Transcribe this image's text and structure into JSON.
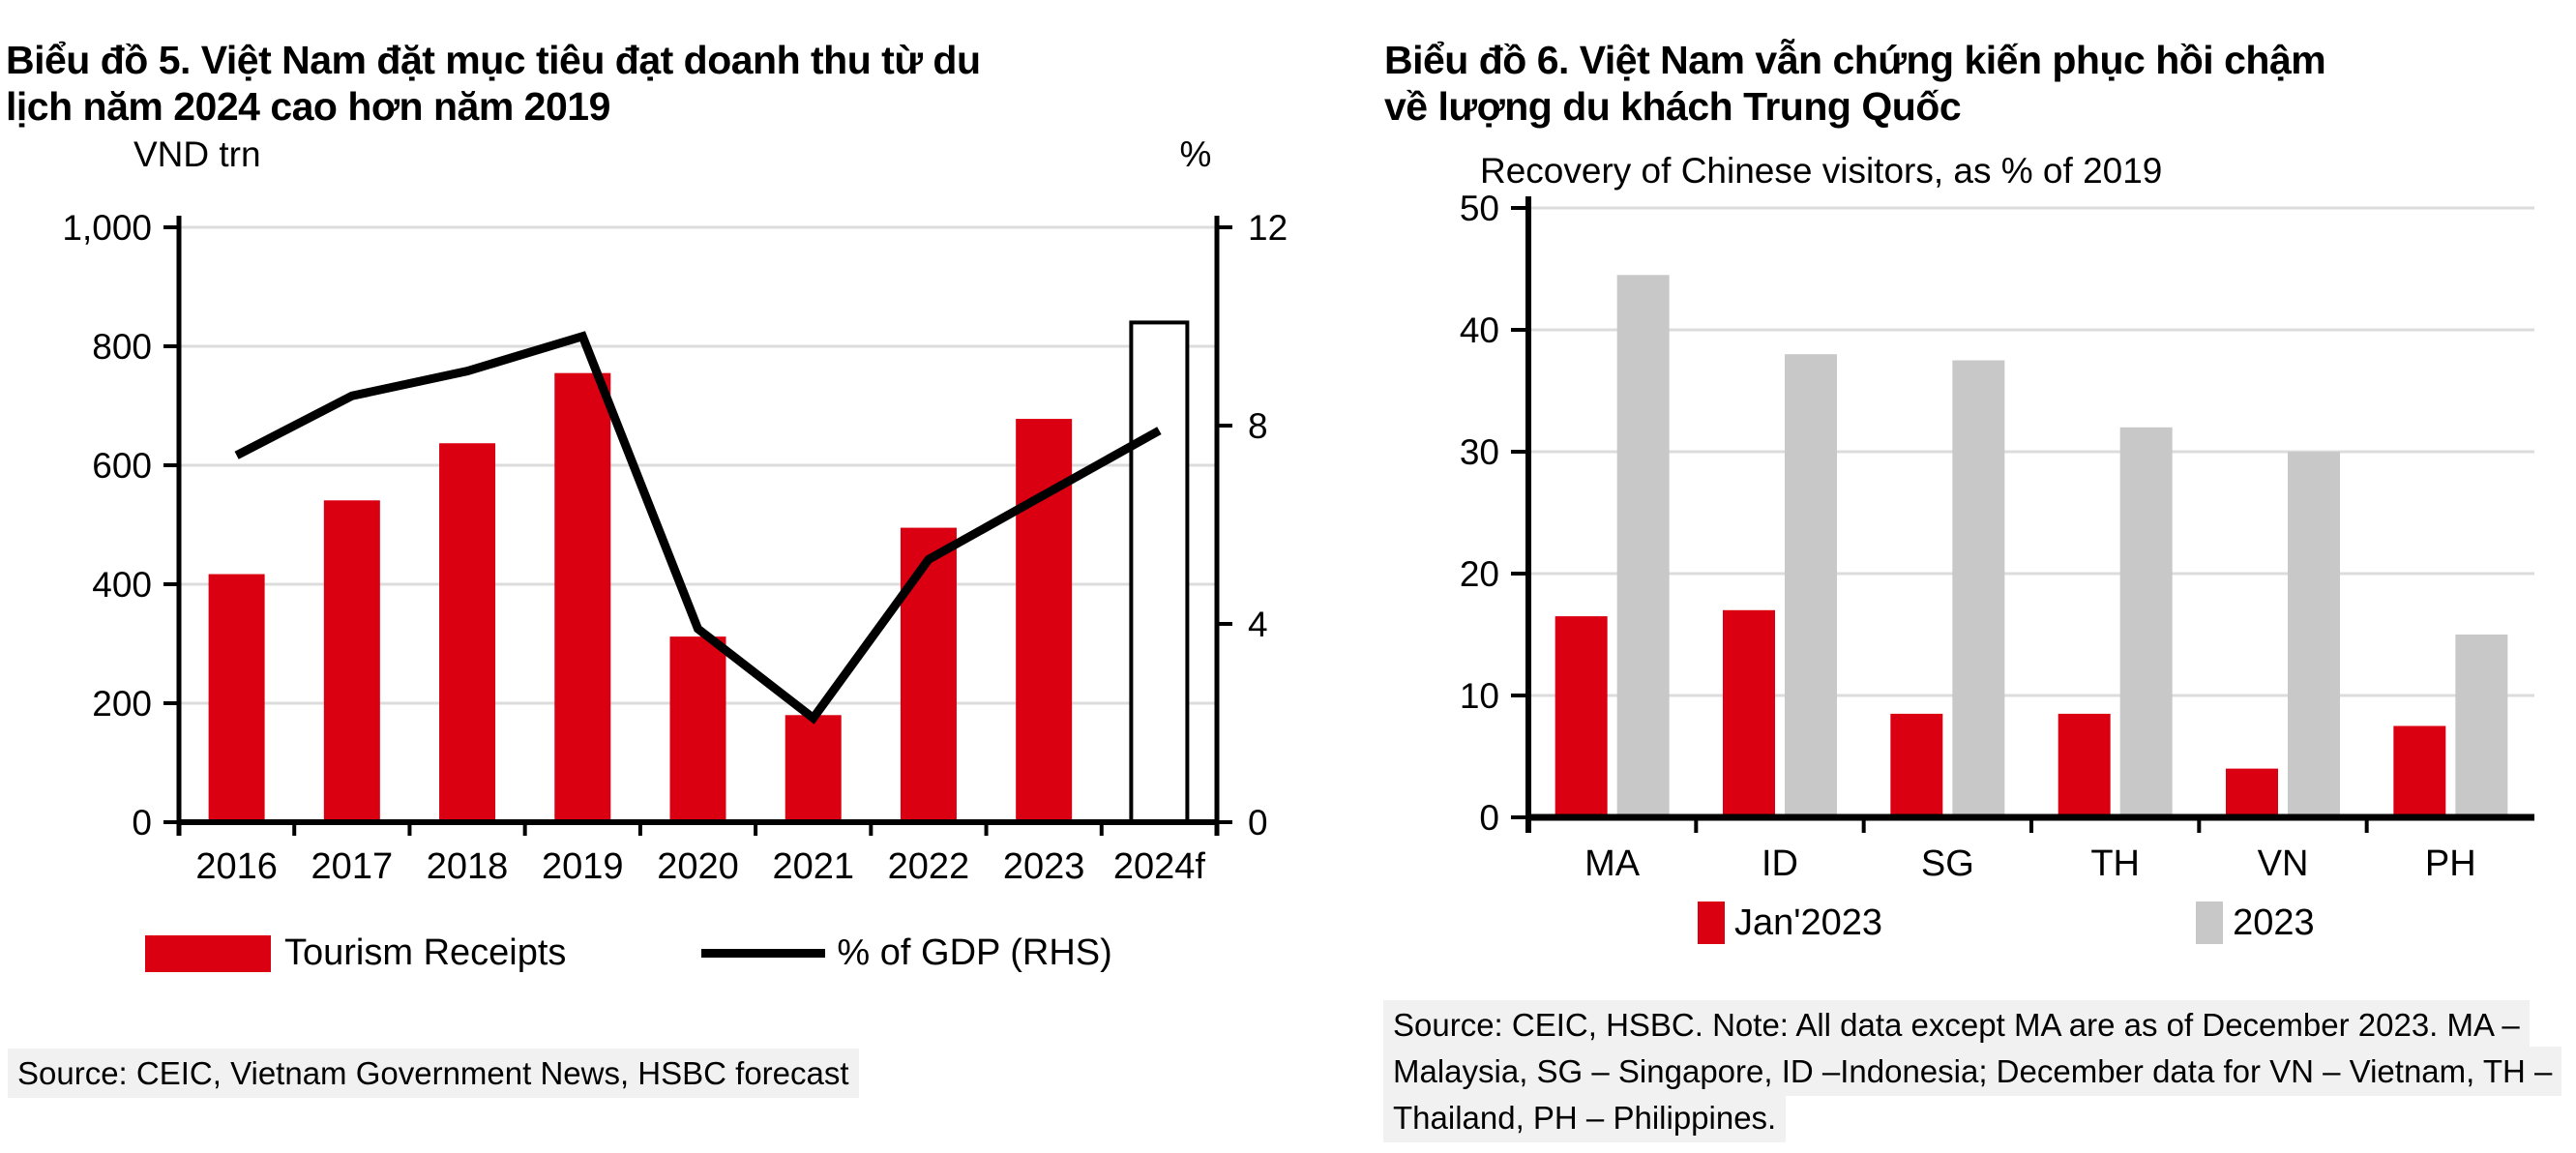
{
  "colors": {
    "hsbc_red": "#DB0011",
    "bar_gray": "#C8C8C8",
    "gridline": "#DCDCDC",
    "axis": "#000000",
    "forecast_bar_fill": "#FFFFFF",
    "source_highlight": "#F1F1F1"
  },
  "chart5": {
    "title_line1": "Biểu đồ 5. Việt Nam đặt mục tiêu đạt doanh thu từ du",
    "title_line2": "lịch năm 2024 cao hơn năm 2019",
    "source": "Source: CEIC, Vietnam Government News, HSBC forecast"
  },
  "chart6": {
    "title_line1": "Biểu đồ 6. Việt Nam vẫn chứng kiến phục hồi chậm",
    "title_line2": "về lượng du khách Trung Quốc",
    "source": "Source: CEIC, HSBC. Note: All data except MA are as of December 2023. MA – Malaysia, SG – Singapore, ID –Indonesia; December data for VN – Vietnam, TH – Thailand, PH – Philippines."
  },
  "chart_data": [
    {
      "id": "chart5",
      "type": "bar",
      "combo": "bar+line",
      "categories": [
        "2016",
        "2017",
        "2018",
        "2019",
        "2020",
        "2021",
        "2022",
        "2023",
        "2024f"
      ],
      "series": [
        {
          "name": "Tourism Receipts",
          "type": "bar",
          "axis": "left",
          "color": "#DB0011",
          "values": [
            417,
            541,
            637,
            755,
            312,
            180,
            495,
            678,
            840
          ],
          "forecast_index": 8
        },
        {
          "name": "% of GDP (RHS)",
          "type": "line",
          "axis": "right",
          "color": "#000000",
          "values": [
            7.4,
            8.6,
            9.1,
            9.8,
            3.9,
            2.1,
            5.3,
            6.6,
            7.9
          ]
        }
      ],
      "left_axis": {
        "label": "VND trn",
        "range": [
          0,
          1000
        ],
        "ticks": [
          0,
          200,
          400,
          600,
          800,
          1000
        ],
        "tick_labels": [
          "0",
          "200",
          "400",
          "600",
          "800",
          "1,000"
        ]
      },
      "right_axis": {
        "label": "%",
        "range": [
          0,
          12
        ],
        "ticks": [
          0,
          4,
          8,
          12
        ],
        "tick_labels": [
          "0",
          "4",
          "8",
          "12"
        ]
      },
      "grid": true,
      "legend_position": "bottom"
    },
    {
      "id": "chart6",
      "type": "bar",
      "title": "Recovery of Chinese  visitors,  as % of 2019",
      "categories": [
        "MA",
        "ID",
        "SG",
        "TH",
        "VN",
        "PH"
      ],
      "series": [
        {
          "name": "Jan'2023",
          "color": "#DB0011",
          "values": [
            16.5,
            17,
            8.5,
            8.5,
            4,
            7.5
          ]
        },
        {
          "name": "2023",
          "color": "#C8C8C8",
          "values": [
            44.5,
            38,
            37.5,
            32,
            30,
            15
          ]
        }
      ],
      "y_axis": {
        "range": [
          0,
          50
        ],
        "ticks": [
          0,
          10,
          20,
          30,
          40,
          50
        ],
        "tick_labels": [
          "0",
          "10",
          "20",
          "30",
          "40",
          "50"
        ]
      },
      "grid": true,
      "legend_position": "bottom"
    }
  ]
}
